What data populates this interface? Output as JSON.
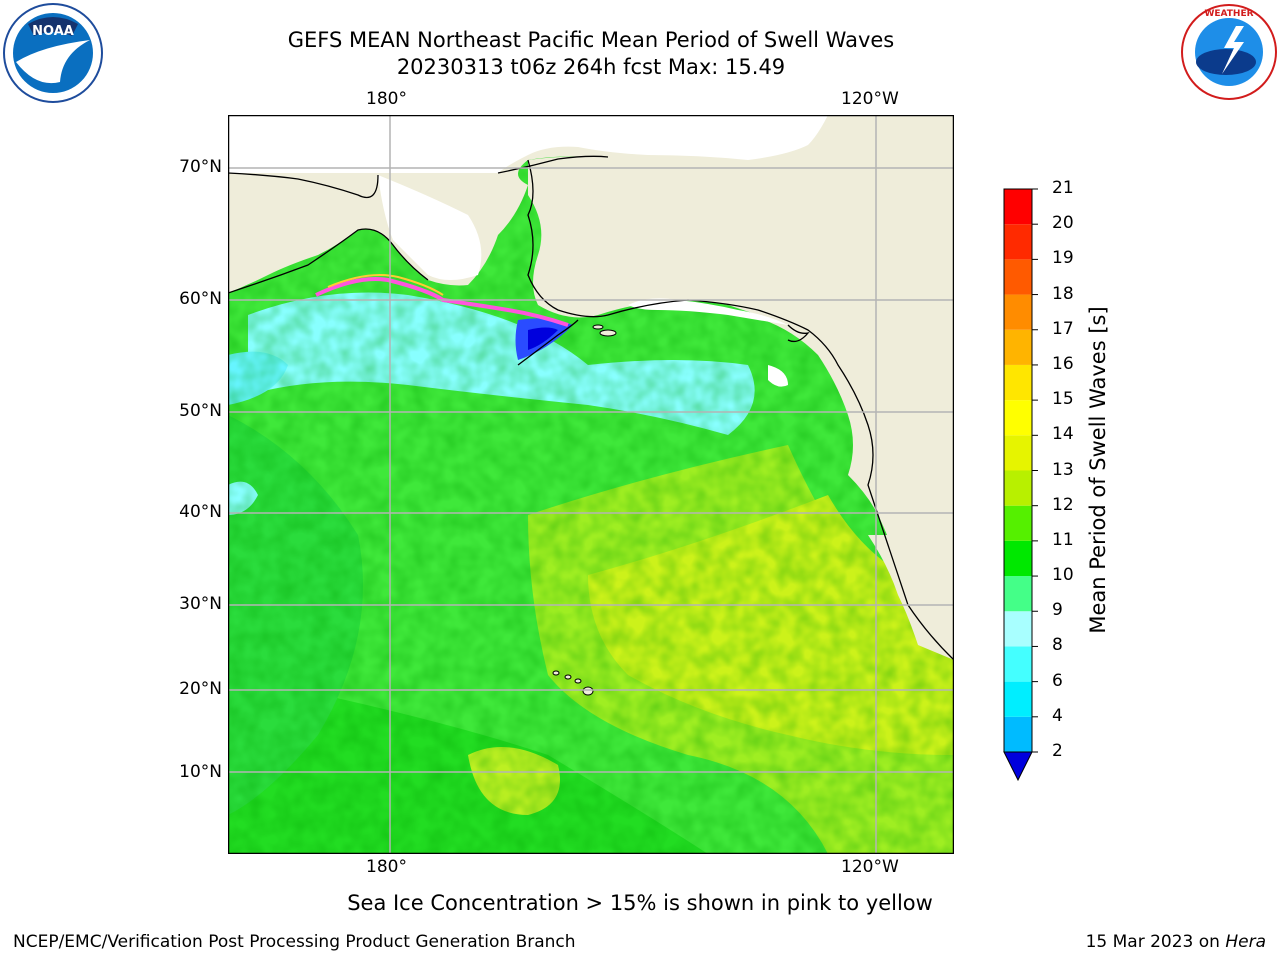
{
  "title_line1": "GEFS MEAN Northeast Pacific Mean Period of Swell Waves",
  "title_line2": "20230313 t06z 264h fcst   Max: 15.49",
  "lon_labels_top": [
    "180°",
    "120°W"
  ],
  "lon_labels_bottom": [
    "180°",
    "120°W"
  ],
  "lat_labels": [
    "70°N",
    "60°N",
    "50°N",
    "40°N",
    "30°N",
    "20°N",
    "10°N"
  ],
  "colorbar": {
    "title": "Mean Period of Swell Waves [s]",
    "ticks": [
      "2",
      "4",
      "6",
      "8",
      "9",
      "10",
      "11",
      "12",
      "13",
      "14",
      "15",
      "16",
      "17",
      "18",
      "19",
      "20",
      "21"
    ],
    "colors": [
      "#0055ff",
      "#00bbff",
      "#00eeff",
      "#44ffff",
      "#a8ffff",
      "#44ff88",
      "#00e800",
      "#55f000",
      "#b8f000",
      "#e6f400",
      "#ffff00",
      "#ffe600",
      "#ffb400",
      "#ff8c00",
      "#ff5a00",
      "#ff2a00",
      "#ff0000"
    ],
    "under_color": "#0000dd"
  },
  "note": "Sea Ice Concentration > 15% is shown in pink to yellow",
  "footer_left": "NCEP/EMC/Verification Post Processing Product Generation Branch",
  "footer_date": "15 Mar 2023 on ",
  "footer_machine": "Hera",
  "logos": {
    "left": "NOAA",
    "right": "NATIONAL WEATHER SERVICE"
  },
  "colors": {
    "land": "#efedda",
    "ocean_main": "#3fe83a",
    "ocean_yellow": "#ccf21a",
    "ocean_cyan": "#88ffff",
    "grid": "#b4b4b4"
  }
}
